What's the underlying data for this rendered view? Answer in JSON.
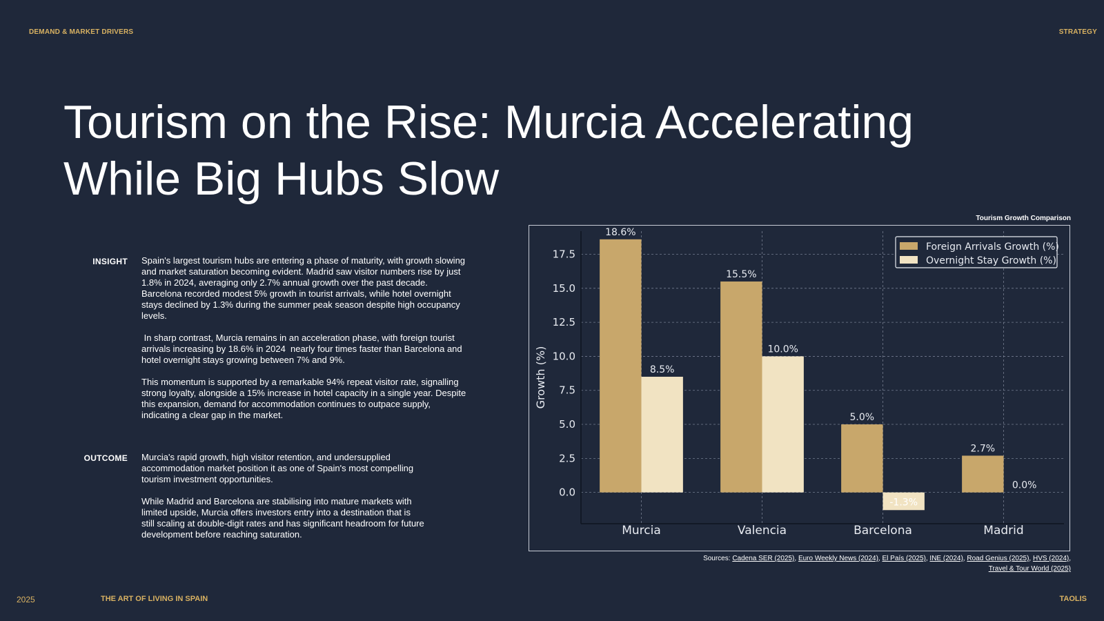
{
  "header": {
    "section": "DEMAND & MARKET DRIVERS",
    "category": "STRATEGY"
  },
  "title": {
    "line1": "Tourism on the Rise: Murcia Accelerating",
    "line2": "While Big Hubs Slow"
  },
  "insight": {
    "label": "INSIGHT",
    "paragraphs": [
      "Spain's largest tourism hubs are entering a phase of maturity, with growth slowing and market saturation becoming evident. Madrid saw visitor numbers rise by just 1.8% in 2024, averaging only 2.7% annual growth over the past decade. Barcelona recorded modest 5% growth in tourist arrivals, while hotel overnight stays declined by 1.3% during the summer peak season despite high occupancy levels.",
      " In sharp contrast, Murcia remains in an acceleration phase, with foreign tourist arrivals increasing by 18.6% in 2024  nearly four times faster than Barcelona and hotel overnight stays growing between 7% and 9%.",
      "This momentum is supported by a remarkable 94% repeat visitor rate, signalling strong loyalty, alongside a 15% increase in hotel capacity in a single year. Despite this expansion, demand for accommodation continues to outpace supply, indicating a clear gap in the market."
    ]
  },
  "outcome": {
    "label": "OUTCOME",
    "paragraphs": [
      "Murcia's rapid growth, high visitor retention, and undersupplied accommodation market position it as one of Spain's most compelling tourism investment opportunities.",
      "While Madrid and Barcelona are stabilising into mature markets with limited upside, Murcia offers investors entry into a destination that is still scaling at double-digit rates and has significant headroom for future development before reaching saturation."
    ]
  },
  "chart_title": "Tourism Growth Comparison",
  "chart_data": {
    "type": "bar",
    "title": "",
    "xlabel": "",
    "ylabel": "Growth (%)",
    "categories": [
      "Murcia",
      "Valencia",
      "Barcelona",
      "Madrid"
    ],
    "series": [
      {
        "name": "Foreign Arrivals Growth (%)",
        "values": [
          18.6,
          15.5,
          5.0,
          2.7
        ],
        "labels": [
          "18.6%",
          "15.5%",
          "5.0%",
          "2.7%"
        ],
        "color": "#c8a76b"
      },
      {
        "name": "Overnight Stay Growth (%)",
        "values": [
          8.5,
          10.0,
          -1.3,
          0.0
        ],
        "labels": [
          "8.5%",
          "10.0%",
          "-1.3%",
          "0.0%"
        ],
        "color": "#f1e3c2"
      }
    ],
    "ylim": [
      -2.3,
      19.2
    ],
    "yticks": [
      0.0,
      2.5,
      5.0,
      7.5,
      10.0,
      12.5,
      15.0,
      17.5
    ],
    "ytick_labels": [
      "0.0",
      "2.5",
      "5.0",
      "7.5",
      "10.0",
      "12.5",
      "15.0",
      "17.5"
    ],
    "grid": true,
    "legend": "top-right",
    "background": "#1f283a"
  },
  "sources": {
    "prefix": "Sources: ",
    "items": [
      "Cadena SER (2025)",
      "Euro Weekly News (2024)",
      "El País (2025)",
      "INE (2024)",
      "Road Genius (2025)",
      "HVS (2024)",
      "Travel & Tour World (2025)"
    ]
  },
  "footer": {
    "year": "2025",
    "tagline": "THE ART OF LIVING IN SPAIN",
    "brand": "TAOLIS"
  },
  "colors": {
    "accent": "#d9b262",
    "background": "#1f283a"
  }
}
